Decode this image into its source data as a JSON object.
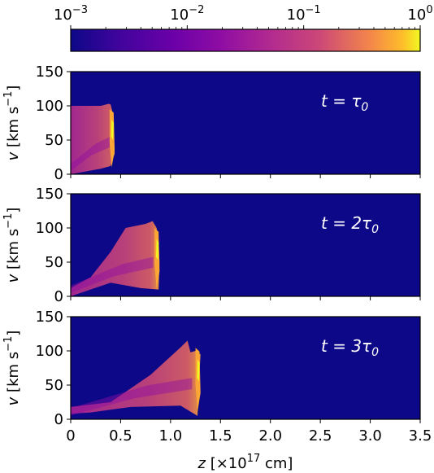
{
  "chart_data": {
    "type": "heatmap",
    "colormap": "plasma",
    "background_color": "#0d0887",
    "colorbar": {
      "scale": "log",
      "range": [
        0.001,
        1
      ],
      "ticks": [
        {
          "mant": "10",
          "exp": "−3"
        },
        {
          "mant": "10",
          "exp": "−2"
        },
        {
          "mant": "10",
          "exp": "−1"
        },
        {
          "mant": "10",
          "exp": "0"
        }
      ]
    },
    "xlabel": {
      "pre": "z [×10",
      "sup": "17",
      "post": " cm]"
    },
    "ylabel": {
      "pre": "v [km s",
      "sup": "−1",
      "post": "]"
    },
    "xlim": [
      0,
      3.5
    ],
    "ylim": [
      0,
      150
    ],
    "xticks": [
      "0",
      "0.5",
      "1.0",
      "1.5",
      "2.0",
      "2.5",
      "3.0",
      "3.5"
    ],
    "yticks": [
      "0",
      "50",
      "100",
      "150"
    ],
    "panels": [
      {
        "label_pre": "t = ",
        "label_post": "τ",
        "label_sub": "0",
        "front_z": 0.42,
        "plateau_v": 100,
        "shape": [
          [
            0,
            0
          ],
          [
            0,
            100
          ],
          [
            0.3,
            100
          ],
          [
            0.38,
            103
          ],
          [
            0.4,
            102
          ],
          [
            0.42,
            90
          ],
          [
            0.43,
            60
          ],
          [
            0.44,
            30
          ],
          [
            0.4,
            12
          ],
          [
            0.3,
            8
          ],
          [
            0.15,
            4
          ]
        ]
      },
      {
        "label_pre": "t = 2",
        "label_post": "τ",
        "label_sub": "0",
        "front_z": 0.87,
        "plateau_v": 105,
        "shape": [
          [
            0,
            12
          ],
          [
            0.2,
            28
          ],
          [
            0.4,
            65
          ],
          [
            0.55,
            100
          ],
          [
            0.75,
            106
          ],
          [
            0.82,
            110
          ],
          [
            0.86,
            100
          ],
          [
            0.88,
            80
          ],
          [
            0.89,
            50
          ],
          [
            0.88,
            10
          ],
          [
            0.7,
            12
          ],
          [
            0.4,
            20
          ],
          [
            0.1,
            5
          ],
          [
            0,
            0
          ]
        ]
      },
      {
        "label_pre": "t = 3",
        "label_post": "τ",
        "label_sub": "0",
        "front_z": 1.28,
        "plateau_v": 110,
        "shape": [
          [
            0,
            8
          ],
          [
            0,
            18
          ],
          [
            0.4,
            25
          ],
          [
            0.8,
            65
          ],
          [
            1.1,
            105
          ],
          [
            1.17,
            115
          ],
          [
            1.2,
            98
          ],
          [
            1.25,
            100
          ],
          [
            1.3,
            95
          ],
          [
            1.28,
            40
          ],
          [
            1.27,
            5
          ],
          [
            1.1,
            20
          ],
          [
            0.6,
            18
          ],
          [
            0.2,
            10
          ]
        ]
      }
    ]
  }
}
